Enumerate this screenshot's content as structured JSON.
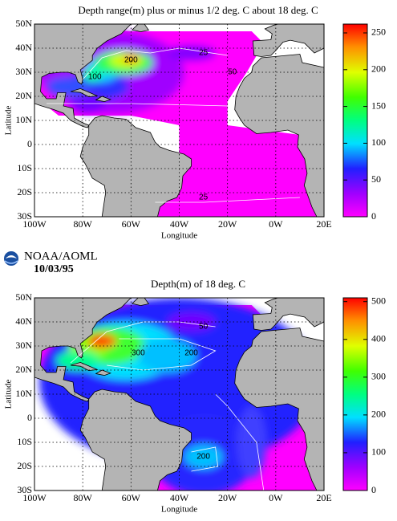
{
  "header": {
    "org": "NOAA/AOML",
    "date": "10/03/95"
  },
  "panels": [
    {
      "title": "Depth range(m) plus or minus 1/2 deg. C about 18 deg. C",
      "xlabel": "Longitude",
      "ylabel": "Latitude",
      "xlim": [
        -100,
        20
      ],
      "ylim": [
        -30,
        50
      ],
      "xticks": [
        {
          "value": -100,
          "label": "100W"
        },
        {
          "value": -80,
          "label": "80W"
        },
        {
          "value": -60,
          "label": "60W"
        },
        {
          "value": -40,
          "label": "40W"
        },
        {
          "value": -20,
          "label": "20W"
        },
        {
          "value": 0,
          "label": "0W"
        },
        {
          "value": 20,
          "label": "20E"
        }
      ],
      "yticks": [
        {
          "value": 50,
          "label": "50N"
        },
        {
          "value": 40,
          "label": "40N"
        },
        {
          "value": 30,
          "label": "30N"
        },
        {
          "value": 20,
          "label": "20N"
        },
        {
          "value": 10,
          "label": "10N"
        },
        0,
        {
          "value": -10,
          "label": "10S"
        },
        {
          "value": -20,
          "label": "20S"
        },
        {
          "value": -30,
          "label": "30S"
        }
      ],
      "colorbar": {
        "lim": [
          0,
          262
        ],
        "ticks": [
          0,
          50,
          100,
          150,
          200,
          250
        ]
      },
      "contour_labels": [
        200,
        100,
        25,
        50,
        25
      ]
    },
    {
      "title": "Depth(m) of 18 deg. C",
      "xlabel": "Longitude",
      "ylabel": "Latitude",
      "xlim": [
        -100,
        20
      ],
      "ylim": [
        -30,
        50
      ],
      "xticks": [
        {
          "value": -100,
          "label": "100W"
        },
        {
          "value": -80,
          "label": "80W"
        },
        {
          "value": -60,
          "label": "60W"
        },
        {
          "value": -40,
          "label": "40W"
        },
        {
          "value": -20,
          "label": "20W"
        },
        {
          "value": 0,
          "label": "0W"
        },
        {
          "value": 20,
          "label": "20E"
        }
      ],
      "yticks": [
        {
          "value": 50,
          "label": "50N"
        },
        {
          "value": 40,
          "label": "40N"
        },
        {
          "value": 30,
          "label": "30N"
        },
        {
          "value": 20,
          "label": "20N"
        },
        {
          "value": 10,
          "label": "10N"
        },
        0,
        {
          "value": -10,
          "label": "10S"
        },
        {
          "value": -20,
          "label": "20S"
        },
        {
          "value": -30,
          "label": "30S"
        }
      ],
      "colorbar": {
        "lim": [
          0,
          510
        ],
        "ticks": [
          0,
          100,
          200,
          300,
          400,
          500
        ]
      },
      "contour_labels": [
        50,
        300,
        200,
        200
      ]
    }
  ]
}
